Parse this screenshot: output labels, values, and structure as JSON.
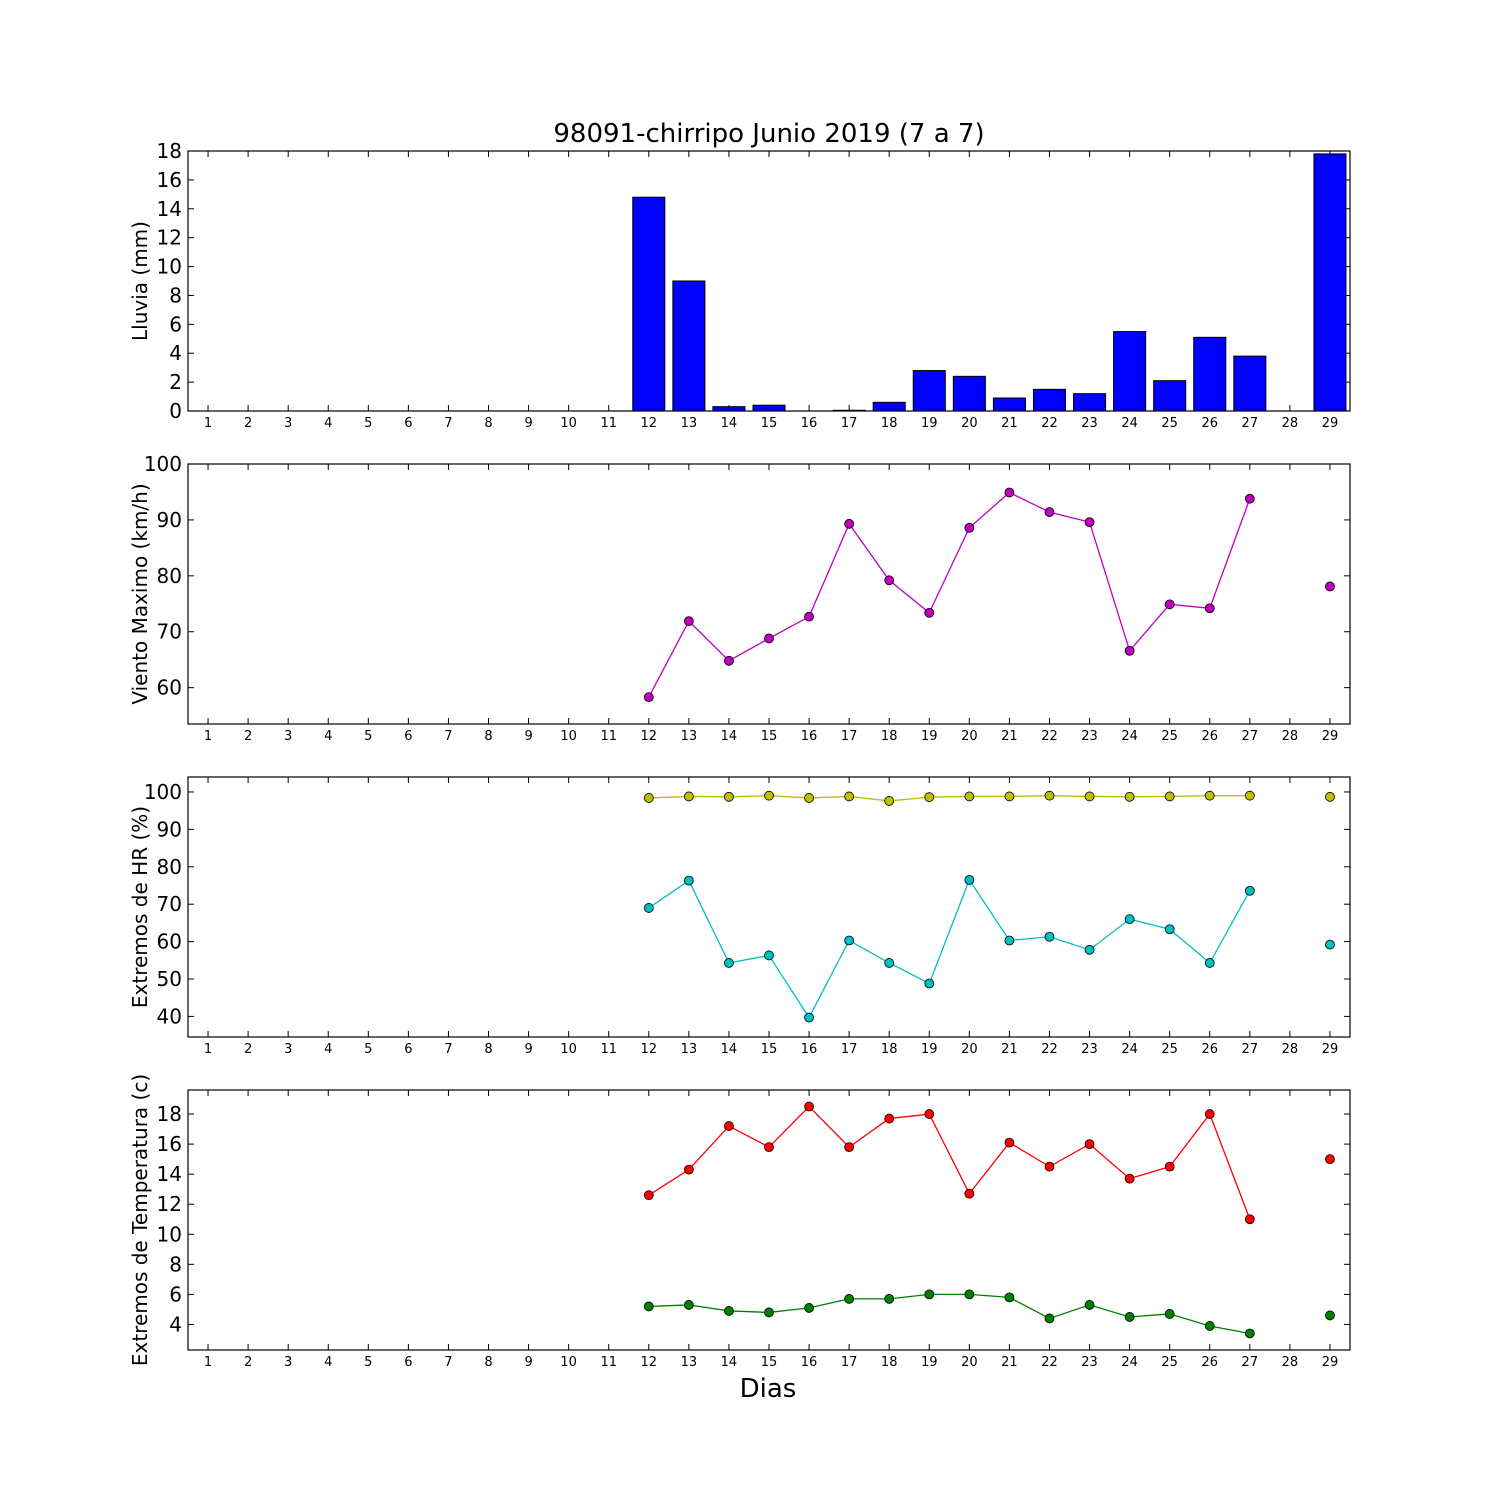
{
  "chart_data": {
    "title": "98091-chirripo Junio 2019  (7 a 7)",
    "xlabel": "Dias",
    "days": [
      1,
      2,
      3,
      4,
      5,
      6,
      7,
      8,
      9,
      10,
      11,
      12,
      13,
      14,
      15,
      16,
      17,
      18,
      19,
      20,
      21,
      22,
      23,
      24,
      25,
      26,
      27,
      28,
      29
    ],
    "xlim": [
      0.5,
      29.5
    ],
    "panels": [
      {
        "type": "bar",
        "ylabel": "Lluvia (mm)",
        "ylim": [
          0,
          18
        ],
        "yticks": [
          0,
          2,
          4,
          6,
          8,
          10,
          12,
          14,
          16,
          18
        ],
        "series": [
          {
            "color": "#0000ff",
            "x": [
              12,
              13,
              14,
              15,
              16,
              17,
              18,
              19,
              20,
              21,
              22,
              23,
              24,
              25,
              26,
              27,
              29
            ],
            "values": [
              14.8,
              9.0,
              0.3,
              0.4,
              0.0,
              0.05,
              0.6,
              2.8,
              2.4,
              0.9,
              1.5,
              1.2,
              5.5,
              2.1,
              5.1,
              3.8,
              17.8
            ]
          }
        ]
      },
      {
        "type": "line",
        "ylabel": "Viento Maximo (km/h)",
        "ylim": [
          53.5,
          100
        ],
        "yticks": [
          60,
          70,
          80,
          90,
          100
        ],
        "series": [
          {
            "color": "#bf00bf",
            "x": [
              12,
              13,
              14,
              15,
              16,
              17,
              18,
              19,
              20,
              21,
              22,
              23,
              24,
              25,
              26,
              27,
              29
            ],
            "values": [
              58.3,
              71.9,
              64.8,
              68.8,
              72.7,
              89.3,
              79.2,
              73.4,
              88.6,
              94.9,
              91.4,
              89.6,
              66.6,
              74.9,
              74.2,
              93.8,
              78.1
            ]
          }
        ]
      },
      {
        "type": "line",
        "ylabel": "Extremos de HR (%)",
        "ylim": [
          34.5,
          104
        ],
        "yticks": [
          40,
          50,
          60,
          70,
          80,
          90,
          100
        ],
        "series": [
          {
            "color": "#bfbf00",
            "x": [
              12,
              13,
              14,
              15,
              16,
              17,
              18,
              19,
              20,
              21,
              22,
              23,
              24,
              25,
              26,
              27,
              29
            ],
            "values": [
              98.4,
              98.8,
              98.7,
              99.0,
              98.4,
              98.8,
              97.6,
              98.6,
              98.8,
              98.8,
              99.0,
              98.8,
              98.7,
              98.8,
              99.0,
              99.0,
              98.7
            ]
          },
          {
            "color": "#00bfbf",
            "x": [
              12,
              13,
              14,
              15,
              16,
              17,
              18,
              19,
              20,
              21,
              22,
              23,
              24,
              25,
              26,
              27,
              29
            ],
            "values": [
              69.0,
              76.3,
              54.3,
              56.3,
              39.7,
              60.3,
              54.3,
              48.8,
              76.5,
              60.3,
              61.3,
              57.8,
              66.0,
              63.3,
              54.3,
              73.6,
              59.2
            ]
          }
        ]
      },
      {
        "type": "line",
        "ylabel": "Extremos de Temperatura (c)",
        "ylim": [
          2.3,
          19.6
        ],
        "yticks": [
          4,
          6,
          8,
          10,
          12,
          14,
          16,
          18
        ],
        "series": [
          {
            "color": "#ff0000",
            "x": [
              12,
              13,
              14,
              15,
              16,
              17,
              18,
              19,
              20,
              21,
              22,
              23,
              24,
              25,
              26,
              27,
              29
            ],
            "values": [
              12.6,
              14.3,
              17.2,
              15.8,
              18.5,
              15.8,
              17.7,
              18.0,
              12.7,
              16.1,
              14.5,
              16.0,
              13.7,
              14.5,
              18.0,
              11.0,
              15.0
            ]
          },
          {
            "color": "#008000",
            "x": [
              12,
              13,
              14,
              15,
              16,
              17,
              18,
              19,
              20,
              21,
              22,
              23,
              24,
              25,
              26,
              27,
              29
            ],
            "values": [
              5.2,
              5.3,
              4.9,
              4.8,
              5.1,
              5.7,
              5.7,
              6.0,
              6.0,
              5.8,
              4.4,
              5.3,
              4.5,
              4.7,
              3.9,
              3.4,
              4.6
            ]
          }
        ]
      }
    ]
  }
}
